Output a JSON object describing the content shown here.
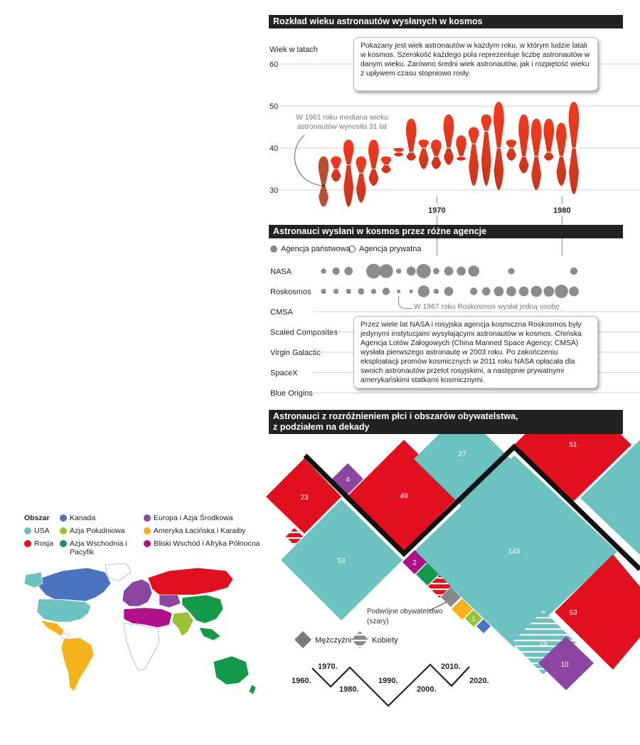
{
  "section1": {
    "title": "Rozkład wieku astronautów wysłanych w kosmos",
    "ylabel": "Wiek w latach",
    "note": "Pokazany jest wiek astronautów w każdym roku, w którym ludzie latali w kosmos. Szerokość każdego pola reprezentuje liczbę astronautów w danym wieku. Zarówno średni wiek astronautów, jak i rozpiętość wieku z upływem czasu stopniowo rosły.",
    "annotation": "W 1961 roku mediana wieku astronautów wynosiła 31 lat"
  },
  "section2": {
    "title": "Astronauci wysłani w kosmos przez różne agencje",
    "legend_state": "Agencja państwowa",
    "legend_private": "Agencja prywatna",
    "annotation": "W 1967 roku Roskosmos wysłał jedną osobę",
    "note": "Przez wiele lat NASA i rosyjska agencja kosmiczna Roskosmos były jedynymi instytucjami wysyłającymi astronautów w kosmos. Chińska Agencja Lotów Załogowych (China Manned Space Agency; CMSA) wysłała pierwszego astronautę w 2003 roku. Po zakończeniu eksploatacji promów kosmicznych w 2011 roku NASA opłacała dla swoich astronautów przelot rosyjskimi, a następnie prywatnymi amerykańskimi statkami kosmicznymi."
  },
  "section3": {
    "title_line1": "Astronauci z rozróżnieniem płci i obszarów obywatelstwa,",
    "title_line2": "z podziałem na dekady",
    "dual_label_line1": "Podwójne obywatelstwo",
    "dual_label_line2": "(szary)",
    "legend_men": "Mężczyźni",
    "legend_women": "Kobiety",
    "region_title": "Obszar"
  },
  "colors": {
    "usa": "#6cc2c0",
    "rosja": "#e0101f",
    "kanada": "#4a74c0",
    "azja_poludniowa": "#9ac233",
    "azja_wschodnia": "#129a4a",
    "europa": "#8c45a0",
    "ameryka_lacinska": "#f6b21a",
    "bliski_wschod": "#b0118b",
    "dual": "#888888"
  },
  "chart_data": [
    {
      "type": "violin",
      "ylabel": "Wiek w latach",
      "ylim": [
        25,
        60
      ],
      "yticks": [
        30,
        40,
        50,
        60
      ],
      "xticks": [
        1970,
        1980
      ],
      "years": [
        {
          "year": 1961,
          "median": 31,
          "min": 26,
          "max": 38
        },
        {
          "year": 1962,
          "median": 35,
          "min": 32,
          "max": 38
        },
        {
          "year": 1963,
          "median": 36,
          "min": 26,
          "max": 42
        },
        {
          "year": 1964,
          "median": 34,
          "min": 27,
          "max": 38
        },
        {
          "year": 1965,
          "median": 35,
          "min": 31,
          "max": 42
        },
        {
          "year": 1966,
          "median": 36,
          "min": 34,
          "max": 38
        },
        {
          "year": 1967,
          "median": 39,
          "min": 38,
          "max": 40
        },
        {
          "year": 1968,
          "median": 39,
          "min": 37,
          "max": 47
        },
        {
          "year": 1969,
          "median": 40,
          "min": 35,
          "max": 42
        },
        {
          "year": 1970,
          "median": 38,
          "min": 35,
          "max": 42
        },
        {
          "year": 1971,
          "median": 40,
          "min": 36,
          "max": 48
        },
        {
          "year": 1972,
          "median": 38,
          "min": 37,
          "max": 43
        },
        {
          "year": 1973,
          "median": 41,
          "min": 31,
          "max": 45
        },
        {
          "year": 1974,
          "median": 44,
          "min": 31,
          "max": 48
        },
        {
          "year": 1975,
          "median": 40,
          "min": 30,
          "max": 51
        },
        {
          "year": 1976,
          "median": 40,
          "min": 37,
          "max": 42
        },
        {
          "year": 1977,
          "median": 38,
          "min": 34,
          "max": 48
        },
        {
          "year": 1978,
          "median": 38,
          "min": 30,
          "max": 47
        },
        {
          "year": 1979,
          "median": 39,
          "min": 37,
          "max": 47
        },
        {
          "year": 1980,
          "median": 38,
          "min": 31,
          "max": 46
        },
        {
          "year": 1981,
          "median": 40,
          "min": 29,
          "max": 51
        }
      ]
    },
    {
      "type": "bubble",
      "agencies": [
        "NASA",
        "Roskosmos",
        "CMSA",
        "Scaled Composites",
        "Virgin Galactic",
        "SpaceX",
        "Blue Origins"
      ],
      "series": [
        {
          "name": "NASA",
          "points": [
            {
              "year": 1961,
              "value": 2
            },
            {
              "year": 1962,
              "value": 4
            },
            {
              "year": 1963,
              "value": 5
            },
            {
              "year": 1965,
              "value": 16
            },
            {
              "year": 1966,
              "value": 14
            },
            {
              "year": 1967,
              "value": 2
            },
            {
              "year": 1968,
              "value": 6
            },
            {
              "year": 1969,
              "value": 15
            },
            {
              "year": 1970,
              "value": 3
            },
            {
              "year": 1971,
              "value": 6
            },
            {
              "year": 1972,
              "value": 6
            },
            {
              "year": 1973,
              "value": 9
            },
            {
              "year": 1976,
              "value": 3
            },
            {
              "year": 1981,
              "value": 4
            }
          ]
        },
        {
          "name": "Roskosmos",
          "points": [
            {
              "year": 1961,
              "value": 2
            },
            {
              "year": 1962,
              "value": 2
            },
            {
              "year": 1963,
              "value": 2
            },
            {
              "year": 1964,
              "value": 3
            },
            {
              "year": 1965,
              "value": 2
            },
            {
              "year": 1966,
              "value": 4
            },
            {
              "year": 1967,
              "value": 1
            },
            {
              "year": 1968,
              "value": 1
            },
            {
              "year": 1969,
              "value": 10
            },
            {
              "year": 1970,
              "value": 2
            },
            {
              "year": 1971,
              "value": 6
            },
            {
              "year": 1973,
              "value": 4
            },
            {
              "year": 1974,
              "value": 5
            },
            {
              "year": 1975,
              "value": 7
            },
            {
              "year": 1976,
              "value": 7
            },
            {
              "year": 1977,
              "value": 7
            },
            {
              "year": 1978,
              "value": 9
            },
            {
              "year": 1979,
              "value": 8
            },
            {
              "year": 1980,
              "value": 13
            },
            {
              "year": 1981,
              "value": 7
            }
          ]
        }
      ]
    },
    {
      "type": "diamond",
      "decades": [
        {
          "label": "1960.",
          "men": 23,
          "women": 1
        },
        {
          "label": "1970.",
          "men": 53
        },
        {
          "label": "1980.",
          "men": 4
        },
        {
          "label": "1990.",
          "men": 49
        },
        {
          "label": "2000.",
          "men": 2
        },
        {
          "label": "2010.",
          "men": 27
        },
        {
          "label": "2020.",
          "men": 143
        },
        {
          "label": "",
          "men": 51
        },
        {
          "label": "",
          "men": 1
        },
        {
          "label": "",
          "men": 53
        },
        {
          "label": "",
          "women": 15
        },
        {
          "label": "",
          "men": 10
        }
      ]
    },
    {
      "type": "map",
      "regions": [
        {
          "name": "USA",
          "color": "#6cc2c0"
        },
        {
          "name": "Rosja",
          "color": "#e0101f"
        },
        {
          "name": "Kanada",
          "color": "#4a74c0"
        },
        {
          "name": "Azja Południowa",
          "color": "#9ac233"
        },
        {
          "name": "Azja Wschodnia i Pacyfik",
          "color": "#129a4a"
        },
        {
          "name": "Europa i Azja Środkowa",
          "color": "#8c45a0"
        },
        {
          "name": "Ameryka Łacińska i Karaiby",
          "color": "#f6b21a"
        },
        {
          "name": "Bliski Wschód i Afryka Północna",
          "color": "#b0118b"
        }
      ]
    }
  ]
}
